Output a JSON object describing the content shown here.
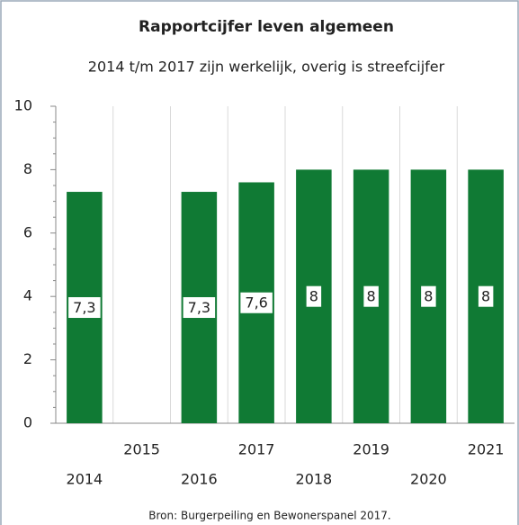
{
  "chart_data": {
    "type": "bar",
    "title": "Rapportcijfer leven algemeen",
    "subtitle": "2014 t/m 2017 zijn werkelijk, overig is streefcijfer",
    "categories": [
      "2014",
      "2015",
      "2016",
      "2017",
      "2018",
      "2019",
      "2020",
      "2021"
    ],
    "values": [
      7.3,
      null,
      7.3,
      7.6,
      8,
      8,
      8,
      8
    ],
    "value_labels": [
      "7,3",
      null,
      "7,3",
      "7,6",
      "8",
      "8",
      "8",
      "8"
    ],
    "color": "#107a34",
    "ylim": [
      0,
      10
    ],
    "yticks": [
      0,
      2,
      4,
      6,
      8,
      10
    ],
    "source": "Bron: Burgerpeiling en Bewonerspanel 2017."
  }
}
